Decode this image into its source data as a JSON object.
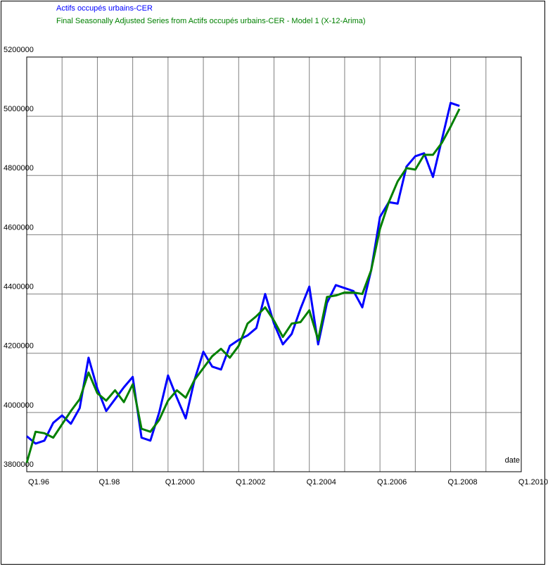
{
  "chart_data": {
    "type": "line",
    "series": [
      {
        "name": "Actifs occupés urbains-CER",
        "color": "#0000ff",
        "values": [
          3920000,
          3895000,
          3905000,
          3965000,
          3990000,
          3962000,
          4015000,
          4185000,
          4080000,
          4005000,
          4045000,
          4085000,
          4120000,
          3915000,
          3905000,
          4000000,
          4125000,
          4050000,
          3980000,
          4110000,
          4205000,
          4155000,
          4145000,
          4225000,
          4245000,
          4260000,
          4285000,
          4400000,
          4300000,
          4230000,
          4265000,
          4350000,
          4425000,
          4230000,
          4370000,
          4430000,
          4420000,
          4410000,
          4355000,
          4480000,
          4660000,
          4710000,
          4705000,
          4830000,
          4865000,
          4875000,
          4795000,
          4920000,
          5045000,
          5035000
        ]
      },
      {
        "name": "Final Seasonally Adjusted Series from Actifs occupés urbains-CER  - Model 1 (X-12-Arima)",
        "color": "#008000",
        "values": [
          3830000,
          3935000,
          3930000,
          3915000,
          3960000,
          4005000,
          4045000,
          4135000,
          4065000,
          4040000,
          4075000,
          4035000,
          4095000,
          3945000,
          3935000,
          3975000,
          4040000,
          4075000,
          4050000,
          4110000,
          4150000,
          4190000,
          4215000,
          4185000,
          4225000,
          4300000,
          4325000,
          4355000,
          4310000,
          4255000,
          4300000,
          4305000,
          4345000,
          4245000,
          4390000,
          4395000,
          4405000,
          4405000,
          4400000,
          4480000,
          4620000,
          4710000,
          4780000,
          4825000,
          4820000,
          4870000,
          4870000,
          4910000,
          4965000,
          5025000
        ]
      }
    ],
    "x": [
      1996,
      1996.25,
      1996.5,
      1996.75,
      1997,
      1997.25,
      1997.5,
      1997.75,
      1998,
      1998.25,
      1998.5,
      1998.75,
      1999,
      1999.25,
      1999.5,
      1999.75,
      2000,
      2000.25,
      2000.5,
      2000.75,
      2001,
      2001.25,
      2001.5,
      2001.75,
      2002,
      2002.25,
      2002.5,
      2002.75,
      2003,
      2003.25,
      2003.5,
      2003.75,
      2004,
      2004.25,
      2004.5,
      2004.75,
      2005,
      2005.25,
      2005.5,
      2005.75,
      2006,
      2006.25,
      2006.5,
      2006.75,
      2007,
      2007.25,
      2007.5,
      2007.75,
      2008,
      2008.25
    ],
    "x_label": "date",
    "xlim": [
      1996,
      2010
    ],
    "xticks": [
      {
        "value": 1996,
        "label": "Q1.96"
      },
      {
        "value": 1998,
        "label": "Q1.98"
      },
      {
        "value": 2000,
        "label": "Q1.2000"
      },
      {
        "value": 2002,
        "label": "Q1.2002"
      },
      {
        "value": 2004,
        "label": "Q1.2004"
      },
      {
        "value": 2006,
        "label": "Q1.2006"
      },
      {
        "value": 2008,
        "label": "Q1.2008"
      },
      {
        "value": 2010,
        "label": "Q1.2010"
      }
    ],
    "minor_xticks": [
      1997,
      1999,
      2001,
      2003,
      2005,
      2007,
      2009
    ],
    "ylim": [
      3800000,
      5200000
    ],
    "yticks": [
      3800000,
      4000000,
      4200000,
      4400000,
      4600000,
      4800000,
      5000000,
      5200000
    ],
    "grid": true
  }
}
